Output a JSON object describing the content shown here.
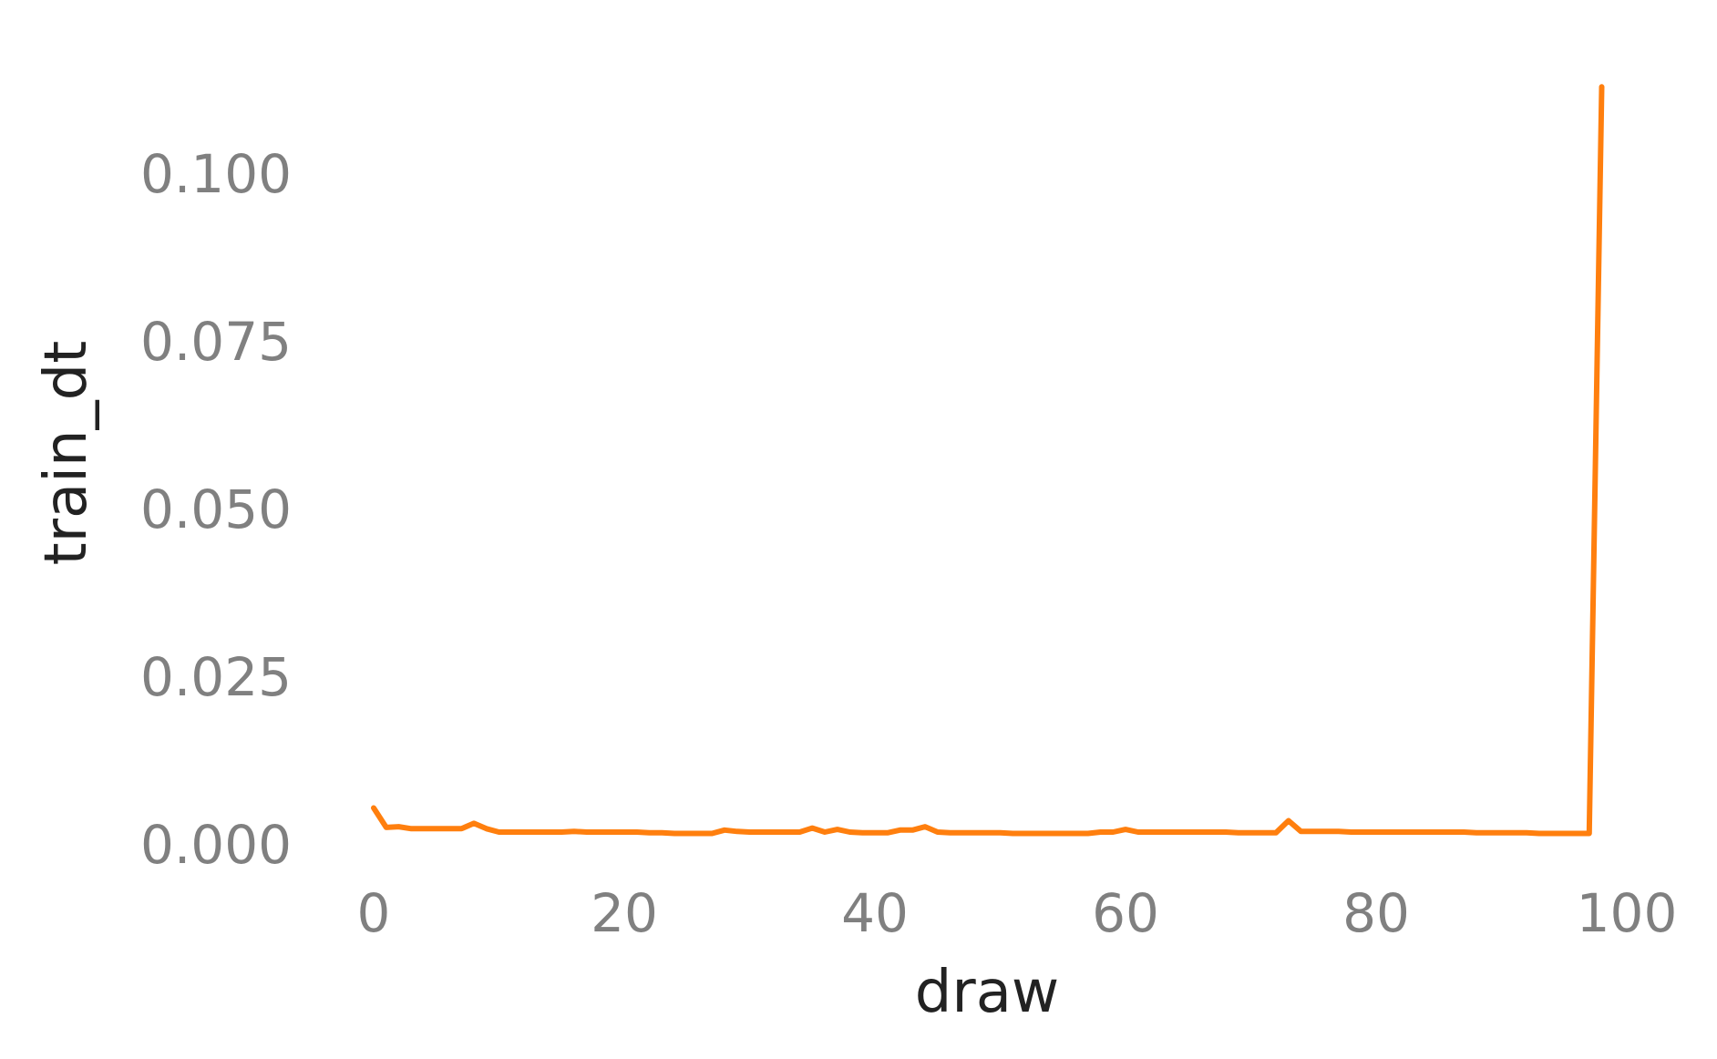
{
  "chart_data": {
    "type": "line",
    "title": "",
    "xlabel": "draw",
    "ylabel": "train_dt",
    "xlim": [
      0,
      100
    ],
    "ylim": [
      0,
      0.1
    ],
    "x_ticks": [
      0,
      20,
      40,
      60,
      80,
      100
    ],
    "x_tick_labels": [
      "0",
      "20",
      "40",
      "60",
      "80",
      "100"
    ],
    "y_ticks": [
      0,
      0.025,
      0.05,
      0.075,
      0.1
    ],
    "y_tick_labels": [
      "0.000",
      "0.025",
      "0.050",
      "0.075",
      "0.100"
    ],
    "grid": false,
    "legend": "none",
    "series": [
      {
        "color": "#ff7f0e",
        "x": [
          0,
          1,
          2,
          3,
          4,
          5,
          6,
          7,
          8,
          9,
          10,
          11,
          12,
          13,
          14,
          15,
          16,
          17,
          18,
          19,
          20,
          21,
          22,
          23,
          24,
          25,
          26,
          27,
          28,
          29,
          30,
          31,
          32,
          33,
          34,
          35,
          36,
          37,
          38,
          39,
          40,
          41,
          42,
          43,
          44,
          45,
          46,
          47,
          48,
          49,
          50,
          51,
          52,
          53,
          54,
          55,
          56,
          57,
          58,
          59,
          60,
          61,
          62,
          63,
          64,
          65,
          66,
          67,
          68,
          69,
          70,
          71,
          72,
          73,
          74,
          75,
          76,
          77,
          78,
          79,
          80,
          81,
          82,
          83,
          84,
          85,
          86,
          87,
          88,
          89,
          90,
          91,
          92,
          93,
          94,
          95,
          96,
          97,
          98
        ],
        "y": [
          0.0055,
          0.0026,
          0.0027,
          0.0024,
          0.0024,
          0.0024,
          0.0024,
          0.0024,
          0.0032,
          0.0024,
          0.0019,
          0.0019,
          0.0019,
          0.0019,
          0.0019,
          0.0019,
          0.002,
          0.0019,
          0.0019,
          0.0019,
          0.0019,
          0.0019,
          0.0018,
          0.0018,
          0.0017,
          0.0017,
          0.0017,
          0.0017,
          0.0022,
          0.002,
          0.0019,
          0.0019,
          0.0019,
          0.0019,
          0.0019,
          0.0025,
          0.0019,
          0.0023,
          0.0019,
          0.0018,
          0.0018,
          0.0018,
          0.0022,
          0.0022,
          0.0027,
          0.0019,
          0.0018,
          0.0018,
          0.0018,
          0.0018,
          0.0018,
          0.0017,
          0.0017,
          0.0017,
          0.0017,
          0.0017,
          0.0017,
          0.0017,
          0.0019,
          0.0019,
          0.0023,
          0.0019,
          0.0019,
          0.0019,
          0.0019,
          0.0019,
          0.0019,
          0.0019,
          0.0019,
          0.0018,
          0.0018,
          0.0018,
          0.0018,
          0.0036,
          0.002,
          0.002,
          0.002,
          0.002,
          0.0019,
          0.0019,
          0.0019,
          0.0019,
          0.0019,
          0.0019,
          0.0019,
          0.0019,
          0.0019,
          0.0019,
          0.0018,
          0.0018,
          0.0018,
          0.0018,
          0.0018,
          0.0017,
          0.0017,
          0.0017,
          0.0017,
          0.0017,
          0.113
        ]
      }
    ]
  }
}
